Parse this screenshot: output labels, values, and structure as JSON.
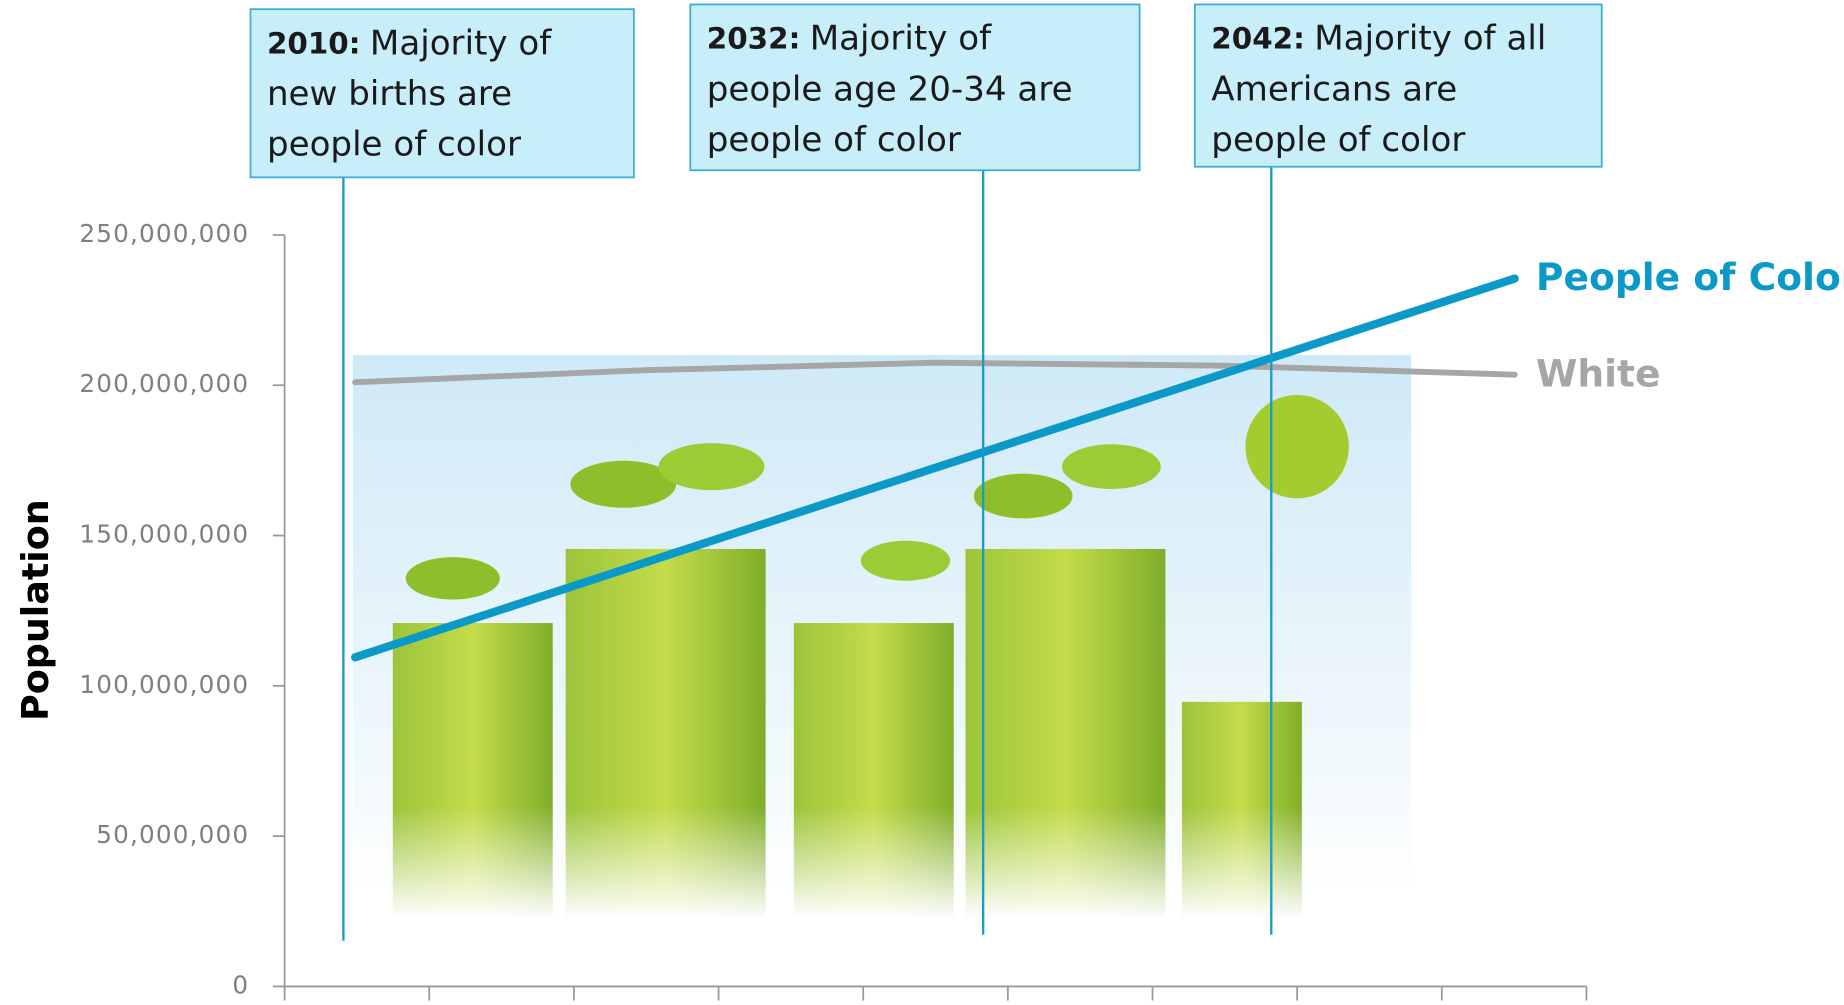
{
  "chart_data": {
    "type": "line",
    "y_label": "Population",
    "categories": [
      null,
      null,
      null,
      null,
      null
    ],
    "series": [
      {
        "name": "White",
        "color": "#a6a6a6",
        "values": [
          201000000,
          205000000,
          207500000,
          206500000,
          203500000
        ]
      },
      {
        "name": "People of Color",
        "color": "#0b9ac8",
        "values": [
          109500000,
          141000000,
          172500000,
          204000000,
          235500000
        ]
      }
    ],
    "ylim": [
      0,
      250000000
    ],
    "yticks": [
      0,
      {
        "value": 50000000,
        "label": "50,000,000"
      },
      {
        "value": 100000000,
        "label": "100,000,000"
      },
      {
        "value": 150000000,
        "label": "150,000,000"
      },
      {
        "value": 200000000,
        "label": "200,000,000"
      },
      {
        "value": 250000000,
        "label": "250,000,000"
      }
    ],
    "annotations": [
      {
        "year": "2010:",
        "lines": [
          "Majority of",
          "new births are",
          "people of color"
        ]
      },
      {
        "year": "2032:",
        "lines": [
          "Majority of",
          "people age 20-34 are",
          "people of color"
        ]
      },
      {
        "year": "2042:",
        "lines": [
          "Majority of all",
          "Americans are",
          "people of color"
        ]
      }
    ]
  }
}
